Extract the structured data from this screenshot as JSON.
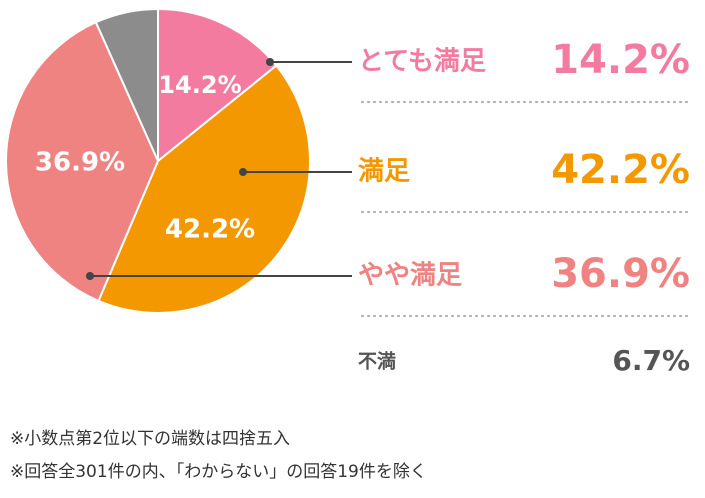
{
  "chart_data": {
    "type": "pie",
    "categories": [
      "とても満足",
      "満足",
      "やや満足",
      "不満"
    ],
    "values": [
      14.2,
      42.2,
      36.9,
      6.7
    ],
    "value_labels": [
      "14.2%",
      "42.2%",
      "36.9%",
      "6.7%"
    ],
    "colors": [
      "#f47ba0",
      "#f39800",
      "#ef8382",
      "#8c8c8c"
    ],
    "notes": [
      "※小数点第2位以下の端数は四捨五入",
      "※回答全301件の内、「わからない」の回答19件を除く"
    ]
  }
}
